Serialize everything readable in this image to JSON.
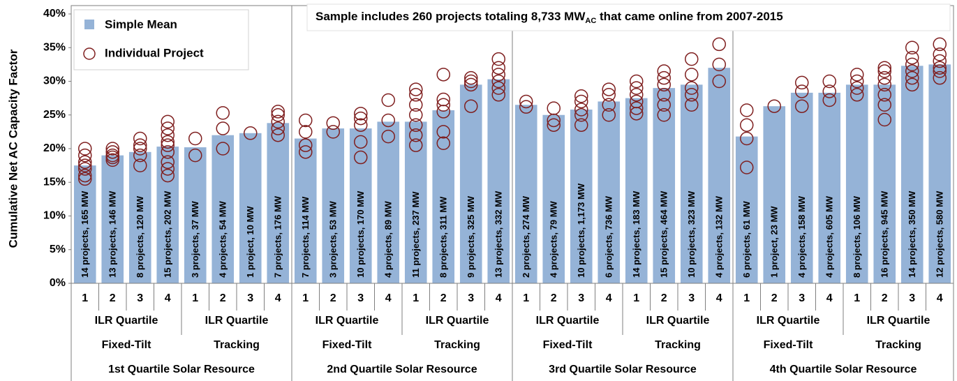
{
  "chart_data": {
    "type": "bar",
    "annotation": [
      "Sample includes 260 projects totaling 8,733 MW",
      "AC",
      " that came online from 2007-2015"
    ],
    "y_label": "Cumulative Net AC Capacity Factor",
    "categories": [
      "1",
      "2",
      "3",
      "4",
      "1",
      "2",
      "3",
      "4",
      "1",
      "2",
      "3",
      "4",
      "1",
      "2",
      "3",
      "4",
      "1",
      "2",
      "3",
      "4",
      "1",
      "2",
      "3",
      "4",
      "1",
      "2",
      "3",
      "4",
      "1",
      "2",
      "3",
      "4"
    ],
    "ilr_labels": [
      "ILR Quartile",
      "ILR Quartile",
      "ILR Quartile",
      "ILR Quartile",
      "ILR Quartile",
      "ILR Quartile",
      "ILR Quartile",
      "ILR Quartile"
    ],
    "mount_labels": [
      "Fixed-Tilt",
      "Tracking",
      "Fixed-Tilt",
      "Tracking",
      "Fixed-Tilt",
      "Tracking",
      "Fixed-Tilt",
      "Tracking"
    ],
    "resource_labels": [
      "1st Quartile Solar Resource",
      "2nd Quartile Solar Resource",
      "3rd Quartile Solar Resource",
      "4th Quartile Solar Resource"
    ],
    "ylim": [
      0,
      40
    ],
    "yticks": [
      {
        "value": 0,
        "label": "0%"
      },
      {
        "value": 5,
        "label": "5%"
      },
      {
        "value": 10,
        "label": "10%"
      },
      {
        "value": 15,
        "label": "15%"
      },
      {
        "value": 20,
        "label": "20%"
      },
      {
        "value": 25,
        "label": "25%"
      },
      {
        "value": 30,
        "label": "30%"
      },
      {
        "value": 35,
        "label": "35%"
      },
      {
        "value": 40,
        "label": "40%"
      }
    ],
    "legend": "upper left",
    "series": [
      {
        "name": "Simple Mean",
        "color": "#95b3d7",
        "values": [
          17.5,
          19.0,
          19.5,
          20.3,
          20.2,
          22.0,
          22.3,
          23.8,
          21.5,
          23.0,
          23.0,
          24.0,
          24.0,
          25.7,
          29.5,
          30.3,
          26.5,
          25.0,
          25.8,
          27.0,
          27.5,
          29.0,
          29.5,
          32.0,
          21.8,
          26.3,
          28.3,
          28.3,
          29.5,
          29.5,
          32.3,
          32.5
        ],
        "bar_labels": [
          "14 projects, 165 MW",
          "13 projects, 146 MW",
          "8 projects, 120 MW",
          "15 projects, 202 MW",
          "3 projects, 37 MW",
          "4 projects, 54 MW",
          "1 project, 10 MW",
          "7 projects, 176 MW",
          "7 projects, 114 MW",
          "3 projects, 53 MW",
          "10 projects, 170 MW",
          "4 projects, 89 MW",
          "11 projects, 237 MW",
          "8 projects, 311 MW",
          "9 projects, 325 MW",
          "13 projects, 332 MW",
          "2 projects, 274 MW",
          "4 projects, 79 MW",
          "10 projects, 1,173 MW",
          "6 projects, 736 MW",
          "14 projects, 183 MW",
          "15 projects, 464 MW",
          "10 projects, 323 MW",
          "4 projects, 132 MW",
          "6 projects, 61 MW",
          "1 project, 23 MW",
          "4 projects, 158 MW",
          "4 projects, 605 MW",
          "8 projects, 106 MW",
          "16 projects, 945 MW",
          "14 projects, 350 MW",
          "12 projects, 580 MW"
        ]
      },
      {
        "name": "Individual Project",
        "color": "#7f1f1f",
        "values": [
          [
            15.5,
            16,
            17,
            17.5,
            18,
            19,
            20
          ],
          [
            18.3,
            18.7,
            19,
            19.5,
            20
          ],
          [
            17.5,
            19,
            20,
            20.5,
            21.5
          ],
          [
            16,
            17,
            18,
            19.5,
            20.5,
            21,
            22,
            23,
            24
          ],
          [
            19,
            21.5
          ],
          [
            20,
            23,
            25.3
          ],
          [
            22.3
          ],
          [
            22,
            23,
            24,
            25,
            25.5
          ],
          [
            19.5,
            20.5,
            22.5,
            24.2
          ],
          [
            22.5,
            23.8
          ],
          [
            18.7,
            21,
            23.5,
            24.5,
            25.2
          ],
          [
            21.8,
            24.2,
            27.2
          ],
          [
            20.5,
            22,
            23.5,
            25,
            26.5,
            28,
            28.8
          ],
          [
            20.8,
            22.5,
            25.5,
            26.5,
            27.3,
            31
          ],
          [
            26.3,
            29.5,
            30,
            30.5
          ],
          [
            28,
            29,
            30,
            31,
            32,
            33.3
          ],
          [
            26.2,
            27
          ],
          [
            23.5,
            24.2,
            26
          ],
          [
            23.5,
            25,
            25.8,
            27,
            27.8
          ],
          [
            25,
            26.5,
            28,
            28.8
          ],
          [
            25.2,
            26,
            27,
            28,
            29,
            30
          ],
          [
            25,
            26.5,
            28,
            29.5,
            30.5,
            31.5
          ],
          [
            26.5,
            28,
            29,
            31,
            33.3
          ],
          [
            30,
            32.5,
            35.5
          ],
          [
            17.2,
            21.5,
            23.5,
            25.7
          ],
          [
            26.3
          ],
          [
            26.3,
            28.5,
            29.8
          ],
          [
            27.2,
            28.5,
            30
          ],
          [
            28,
            29,
            30,
            31
          ],
          [
            24.3,
            26.5,
            28,
            29.5,
            30.5,
            31.5,
            32
          ],
          [
            29.5,
            30.5,
            31.5,
            32.5,
            33.5,
            35
          ],
          [
            30.5,
            31.5,
            32,
            33,
            34,
            35.5
          ]
        ]
      }
    ]
  }
}
